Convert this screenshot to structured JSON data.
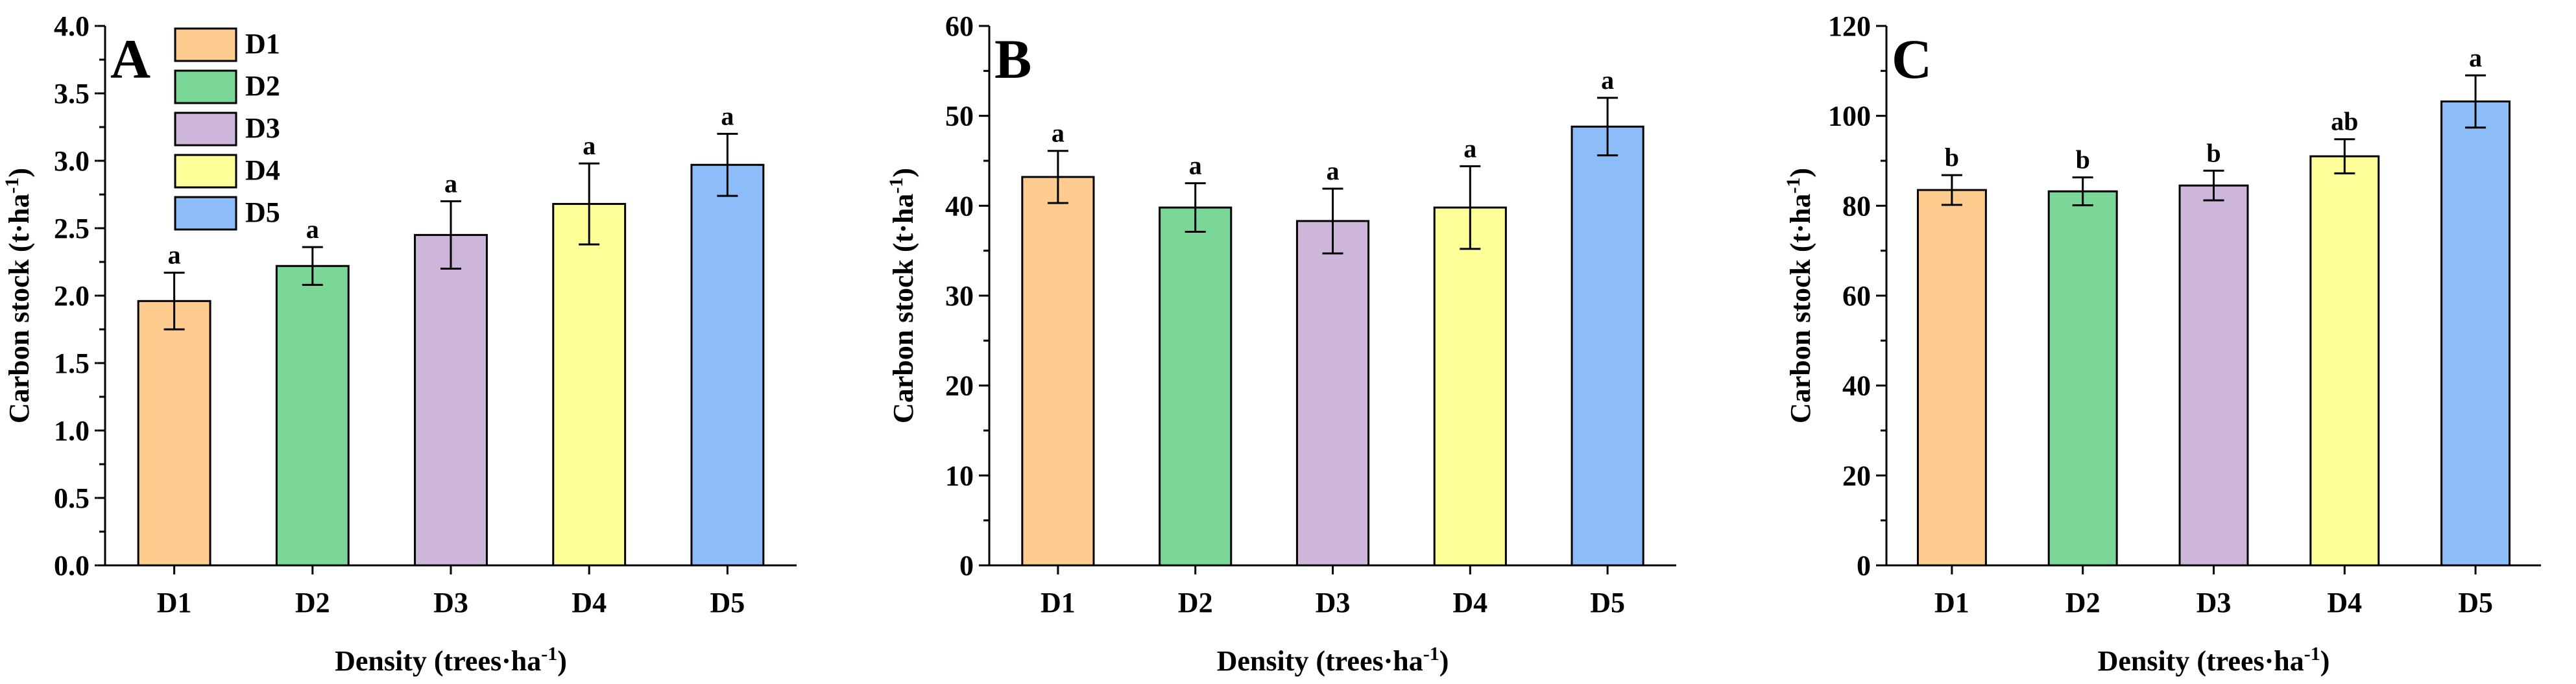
{
  "colors": {
    "D1": "#FFCC8F",
    "D2": "#7AD797",
    "D3": "#CDB6DA",
    "D4": "#FFFF99",
    "D5": "#8DBDF8",
    "axis": "#000000",
    "bar_edge": "#000000"
  },
  "legend": {
    "entries": [
      "D1",
      "D2",
      "D3",
      "D4",
      "D5"
    ],
    "placement": "top-left of panel A"
  },
  "chart_data": [
    {
      "type": "bar",
      "panel": "A",
      "categories": [
        "D1",
        "D2",
        "D3",
        "D4",
        "D5"
      ],
      "values": [
        1.96,
        2.22,
        2.45,
        2.68,
        2.97
      ],
      "errors": [
        0.21,
        0.14,
        0.25,
        0.3,
        0.23
      ],
      "significance": [
        "a",
        "a",
        "a",
        "a",
        "a"
      ],
      "ylim": [
        0,
        4.0
      ],
      "yticks": [
        0.0,
        0.5,
        1.0,
        1.5,
        2.0,
        2.5,
        3.0,
        3.5,
        4.0
      ],
      "ytick_labels": [
        "0.0",
        "0.5",
        "1.0",
        "1.5",
        "2.0",
        "2.5",
        "3.0",
        "3.5",
        "4.0"
      ],
      "ylabel": "Carbon stock (t·ha",
      "ylabel_sup": "-1",
      "ylabel_close": ")",
      "xlabel": "Density (trees·ha",
      "xlabel_sup": "-1",
      "xlabel_close": ")",
      "grid": false
    },
    {
      "type": "bar",
      "panel": "B",
      "categories": [
        "D1",
        "D2",
        "D3",
        "D4",
        "D5"
      ],
      "values": [
        43.2,
        39.8,
        38.3,
        39.8,
        48.8
      ],
      "errors": [
        2.9,
        2.7,
        3.6,
        4.6,
        3.2
      ],
      "significance": [
        "a",
        "a",
        "a",
        "a",
        "a"
      ],
      "ylim": [
        0,
        60
      ],
      "yticks": [
        0,
        10,
        20,
        30,
        40,
        50,
        60
      ],
      "ytick_labels": [
        "0",
        "10",
        "20",
        "30",
        "40",
        "50",
        "60"
      ],
      "ylabel": "Carbon stock (t·ha",
      "ylabel_sup": "-1",
      "ylabel_close": ")",
      "xlabel": "Density (trees·ha",
      "xlabel_sup": "-1",
      "xlabel_close": ")",
      "grid": false
    },
    {
      "type": "bar",
      "panel": "C",
      "categories": [
        "D1",
        "D2",
        "D3",
        "D4",
        "D5"
      ],
      "values": [
        83.5,
        83.2,
        84.5,
        91.0,
        103.2
      ],
      "errors": [
        3.3,
        3.1,
        3.3,
        3.8,
        5.8
      ],
      "significance": [
        "b",
        "b",
        "b",
        "ab",
        "a"
      ],
      "ylim": [
        0,
        120
      ],
      "yticks": [
        0,
        20,
        40,
        60,
        80,
        100,
        120
      ],
      "ytick_labels": [
        "0",
        "20",
        "40",
        "60",
        "80",
        "100",
        "120"
      ],
      "ylabel": "Carbon stock (t·ha",
      "ylabel_sup": "-1",
      "ylabel_close": ")",
      "xlabel": "Density (trees·ha",
      "xlabel_sup": "-1",
      "xlabel_close": ")",
      "grid": false
    }
  ]
}
